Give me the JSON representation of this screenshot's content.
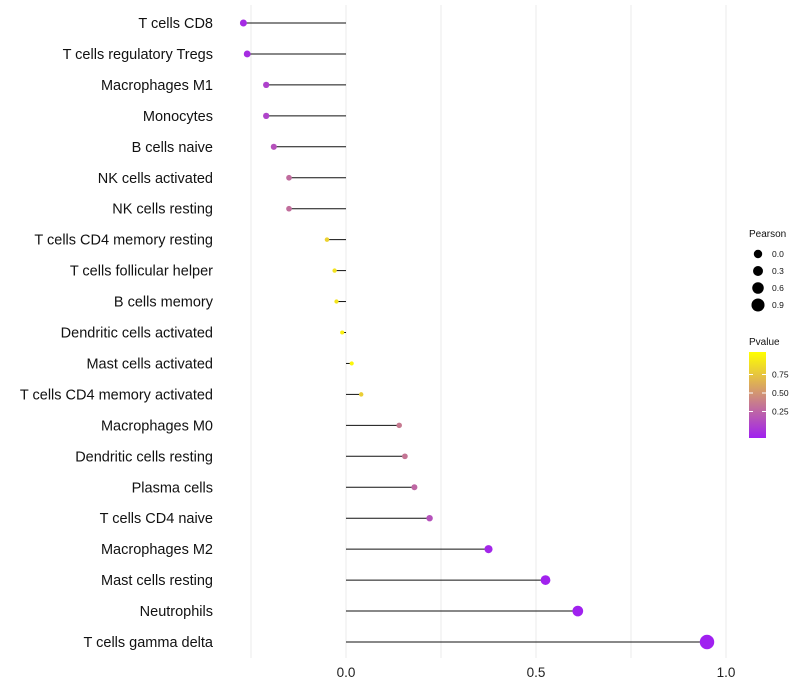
{
  "chart_data": {
    "type": "lollipop",
    "title": "",
    "xlabel": "",
    "ylabel": "",
    "xlim": [
      -0.27,
      1.0
    ],
    "xticks": [
      0.0,
      0.5,
      1.0
    ],
    "xtick_labels": [
      "0.0",
      "0.5",
      "1.0"
    ],
    "points": [
      {
        "category": "T cells CD8",
        "pearson": -0.27,
        "pvalue": 0.05
      },
      {
        "category": "T cells regulatory  Tregs",
        "pearson": -0.26,
        "pvalue": 0.06
      },
      {
        "category": "Macrophages M1",
        "pearson": -0.21,
        "pvalue": 0.15
      },
      {
        "category": "Monocytes",
        "pearson": -0.21,
        "pvalue": 0.16
      },
      {
        "category": "B cells naive",
        "pearson": -0.19,
        "pvalue": 0.22
      },
      {
        "category": "NK cells activated",
        "pearson": -0.15,
        "pvalue": 0.34
      },
      {
        "category": "NK cells resting",
        "pearson": -0.15,
        "pvalue": 0.35
      },
      {
        "category": "T cells CD4 memory resting",
        "pearson": -0.05,
        "pvalue": 0.8
      },
      {
        "category": "T cells follicular helper",
        "pearson": -0.03,
        "pvalue": 0.87
      },
      {
        "category": "B cells memory",
        "pearson": -0.025,
        "pvalue": 0.88
      },
      {
        "category": "Dendritic cells activated",
        "pearson": -0.01,
        "pvalue": 0.93
      },
      {
        "category": "Mast cells activated",
        "pearson": 0.015,
        "pvalue": 0.96
      },
      {
        "category": "T cells CD4 memory activated",
        "pearson": 0.04,
        "pvalue": 0.78
      },
      {
        "category": "Macrophages M0",
        "pearson": 0.14,
        "pvalue": 0.4
      },
      {
        "category": "Dendritic cells resting",
        "pearson": 0.155,
        "pvalue": 0.38
      },
      {
        "category": "Plasma cells",
        "pearson": 0.18,
        "pvalue": 0.32
      },
      {
        "category": "T cells CD4 naive",
        "pearson": 0.22,
        "pvalue": 0.22
      },
      {
        "category": "Macrophages M2",
        "pearson": 0.375,
        "pvalue": 0.03
      },
      {
        "category": "Mast cells resting",
        "pearson": 0.525,
        "pvalue": 0.01
      },
      {
        "category": "Neutrophils",
        "pearson": 0.61,
        "pvalue": 0.005
      },
      {
        "category": "T cells gamma delta",
        "pearson": 0.95,
        "pvalue": 0.0
      }
    ],
    "legend_size": {
      "title": "Pearson",
      "values": [
        0.0,
        0.3,
        0.6,
        0.9
      ],
      "labels": [
        "0.0",
        "0.3",
        "0.6",
        "0.9"
      ]
    },
    "legend_color": {
      "title": "Pvalue",
      "ticks": [
        0.75,
        0.5,
        0.25
      ],
      "labels": [
        "0.75",
        "0.50",
        "0.25"
      ],
      "low_color": "#a020f0",
      "high_color": "#ffff00"
    },
    "colors": {
      "stem": "#111111",
      "grid": "#ebebeb"
    }
  }
}
